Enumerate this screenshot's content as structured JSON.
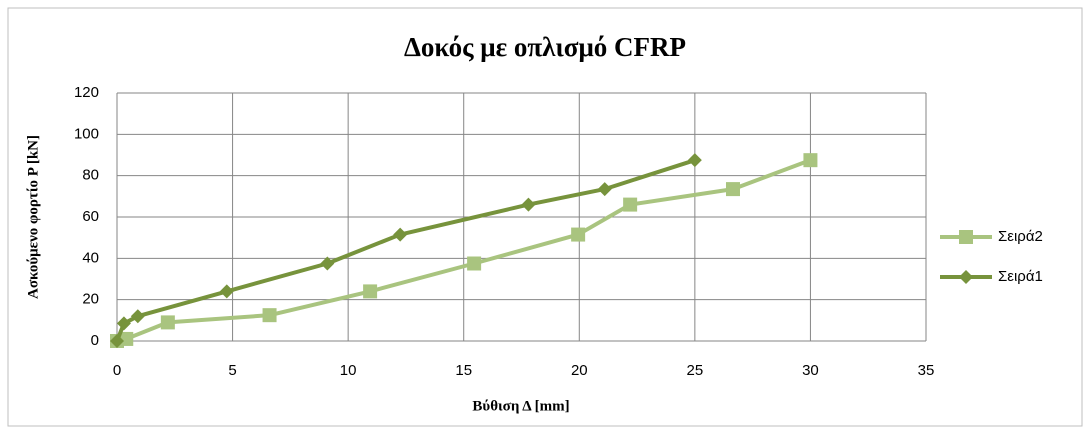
{
  "chart_data": {
    "type": "line",
    "title": "Δοκός με οπλισμό CFRP",
    "xlabel": "Βύθιση Δ [mm]",
    "ylabel": "Ασκούμενο φορτίο P [kN]",
    "xlim": [
      0,
      35
    ],
    "xticks": [
      0,
      5,
      10,
      15,
      20,
      25,
      30,
      35
    ],
    "ylim": [
      0,
      120
    ],
    "yticks": [
      0,
      20,
      40,
      60,
      80,
      100,
      120
    ],
    "grid": true,
    "legend": "right",
    "series": [
      {
        "name": "Σειρά2",
        "color": "#a9c47f",
        "marker": "square",
        "x": [
          0,
          0.4,
          2.2,
          6.6,
          10.95,
          15.45,
          19.95,
          22.2,
          26.65,
          30
        ],
        "values": [
          0,
          1,
          9,
          12.5,
          24,
          37.5,
          51.5,
          66,
          73.5,
          87.5
        ]
      },
      {
        "name": "Σειρά1",
        "color": "#77933c",
        "marker": "diamond",
        "x": [
          0,
          0.3,
          0.9,
          4.75,
          9.1,
          12.25,
          17.8,
          21.1,
          25
        ],
        "values": [
          0,
          8.5,
          12,
          24,
          37.5,
          51.5,
          66,
          73.5,
          87.5
        ]
      }
    ]
  }
}
